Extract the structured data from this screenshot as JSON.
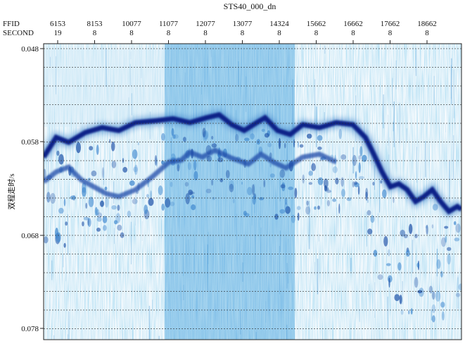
{
  "chart_data": {
    "type": "heatmap",
    "title": "STS40_000_dn",
    "header_rows": [
      {
        "label": "FFID",
        "values": [
          "6153",
          "8153",
          "10077",
          "11077",
          "12077",
          "13077",
          "14324",
          "15662",
          "16662",
          "17662",
          "18662"
        ]
      },
      {
        "label": "SECOND",
        "values": [
          "19",
          "8",
          "8",
          "8",
          "8",
          "8",
          "8",
          "8",
          "8",
          "8",
          "8"
        ]
      }
    ],
    "ylabel": "双程走时/s",
    "y_ticks": [
      "0.048",
      "0.058",
      "0.068",
      "0.078"
    ],
    "ylim": [
      0.048,
      0.078
    ],
    "y_inverted": true,
    "grid": "horizontal dashed",
    "colormap": [
      "#ffffff",
      "#e6f3fb",
      "#a9d8ef",
      "#4ea7d8",
      "#1b5fb3",
      "#0b1f7a"
    ],
    "shaded_band": {
      "from_ffid": "11077",
      "to_ffid": "14324"
    },
    "reflector_main": [
      [
        0.0,
        0.0595
      ],
      [
        0.03,
        0.0575
      ],
      [
        0.06,
        0.058
      ],
      [
        0.1,
        0.057
      ],
      [
        0.14,
        0.0565
      ],
      [
        0.18,
        0.0568
      ],
      [
        0.22,
        0.056
      ],
      [
        0.27,
        0.0558
      ],
      [
        0.31,
        0.0556
      ],
      [
        0.35,
        0.056
      ],
      [
        0.39,
        0.0555
      ],
      [
        0.42,
        0.0552
      ],
      [
        0.45,
        0.0562
      ],
      [
        0.48,
        0.0568
      ],
      [
        0.51,
        0.056
      ],
      [
        0.53,
        0.0555
      ],
      [
        0.56,
        0.0568
      ],
      [
        0.59,
        0.0572
      ],
      [
        0.62,
        0.0562
      ],
      [
        0.66,
        0.0565
      ],
      [
        0.7,
        0.056
      ],
      [
        0.74,
        0.0562
      ],
      [
        0.77,
        0.0575
      ],
      [
        0.79,
        0.0592
      ],
      [
        0.81,
        0.061
      ],
      [
        0.83,
        0.0625
      ],
      [
        0.85,
        0.0622
      ],
      [
        0.87,
        0.0628
      ],
      [
        0.89,
        0.064
      ],
      [
        0.91,
        0.0635
      ],
      [
        0.93,
        0.0628
      ],
      [
        0.95,
        0.064
      ],
      [
        0.97,
        0.065
      ],
      [
        0.99,
        0.0645
      ],
      [
        1.0,
        0.0648
      ]
    ],
    "reflector_secondary": [
      [
        0.0,
        0.062
      ],
      [
        0.03,
        0.061
      ],
      [
        0.06,
        0.0605
      ],
      [
        0.09,
        0.0618
      ],
      [
        0.12,
        0.0625
      ],
      [
        0.15,
        0.0632
      ],
      [
        0.18,
        0.0635
      ],
      [
        0.22,
        0.0628
      ],
      [
        0.26,
        0.0615
      ],
      [
        0.3,
        0.06
      ],
      [
        0.33,
        0.0598
      ],
      [
        0.35,
        0.059
      ],
      [
        0.38,
        0.0595
      ],
      [
        0.41,
        0.0588
      ],
      [
        0.45,
        0.0596
      ],
      [
        0.49,
        0.0602
      ],
      [
        0.52,
        0.0592
      ],
      [
        0.55,
        0.06
      ],
      [
        0.58,
        0.0606
      ],
      [
        0.62,
        0.0595
      ],
      [
        0.66,
        0.0592
      ],
      [
        0.7,
        0.06
      ]
    ]
  }
}
